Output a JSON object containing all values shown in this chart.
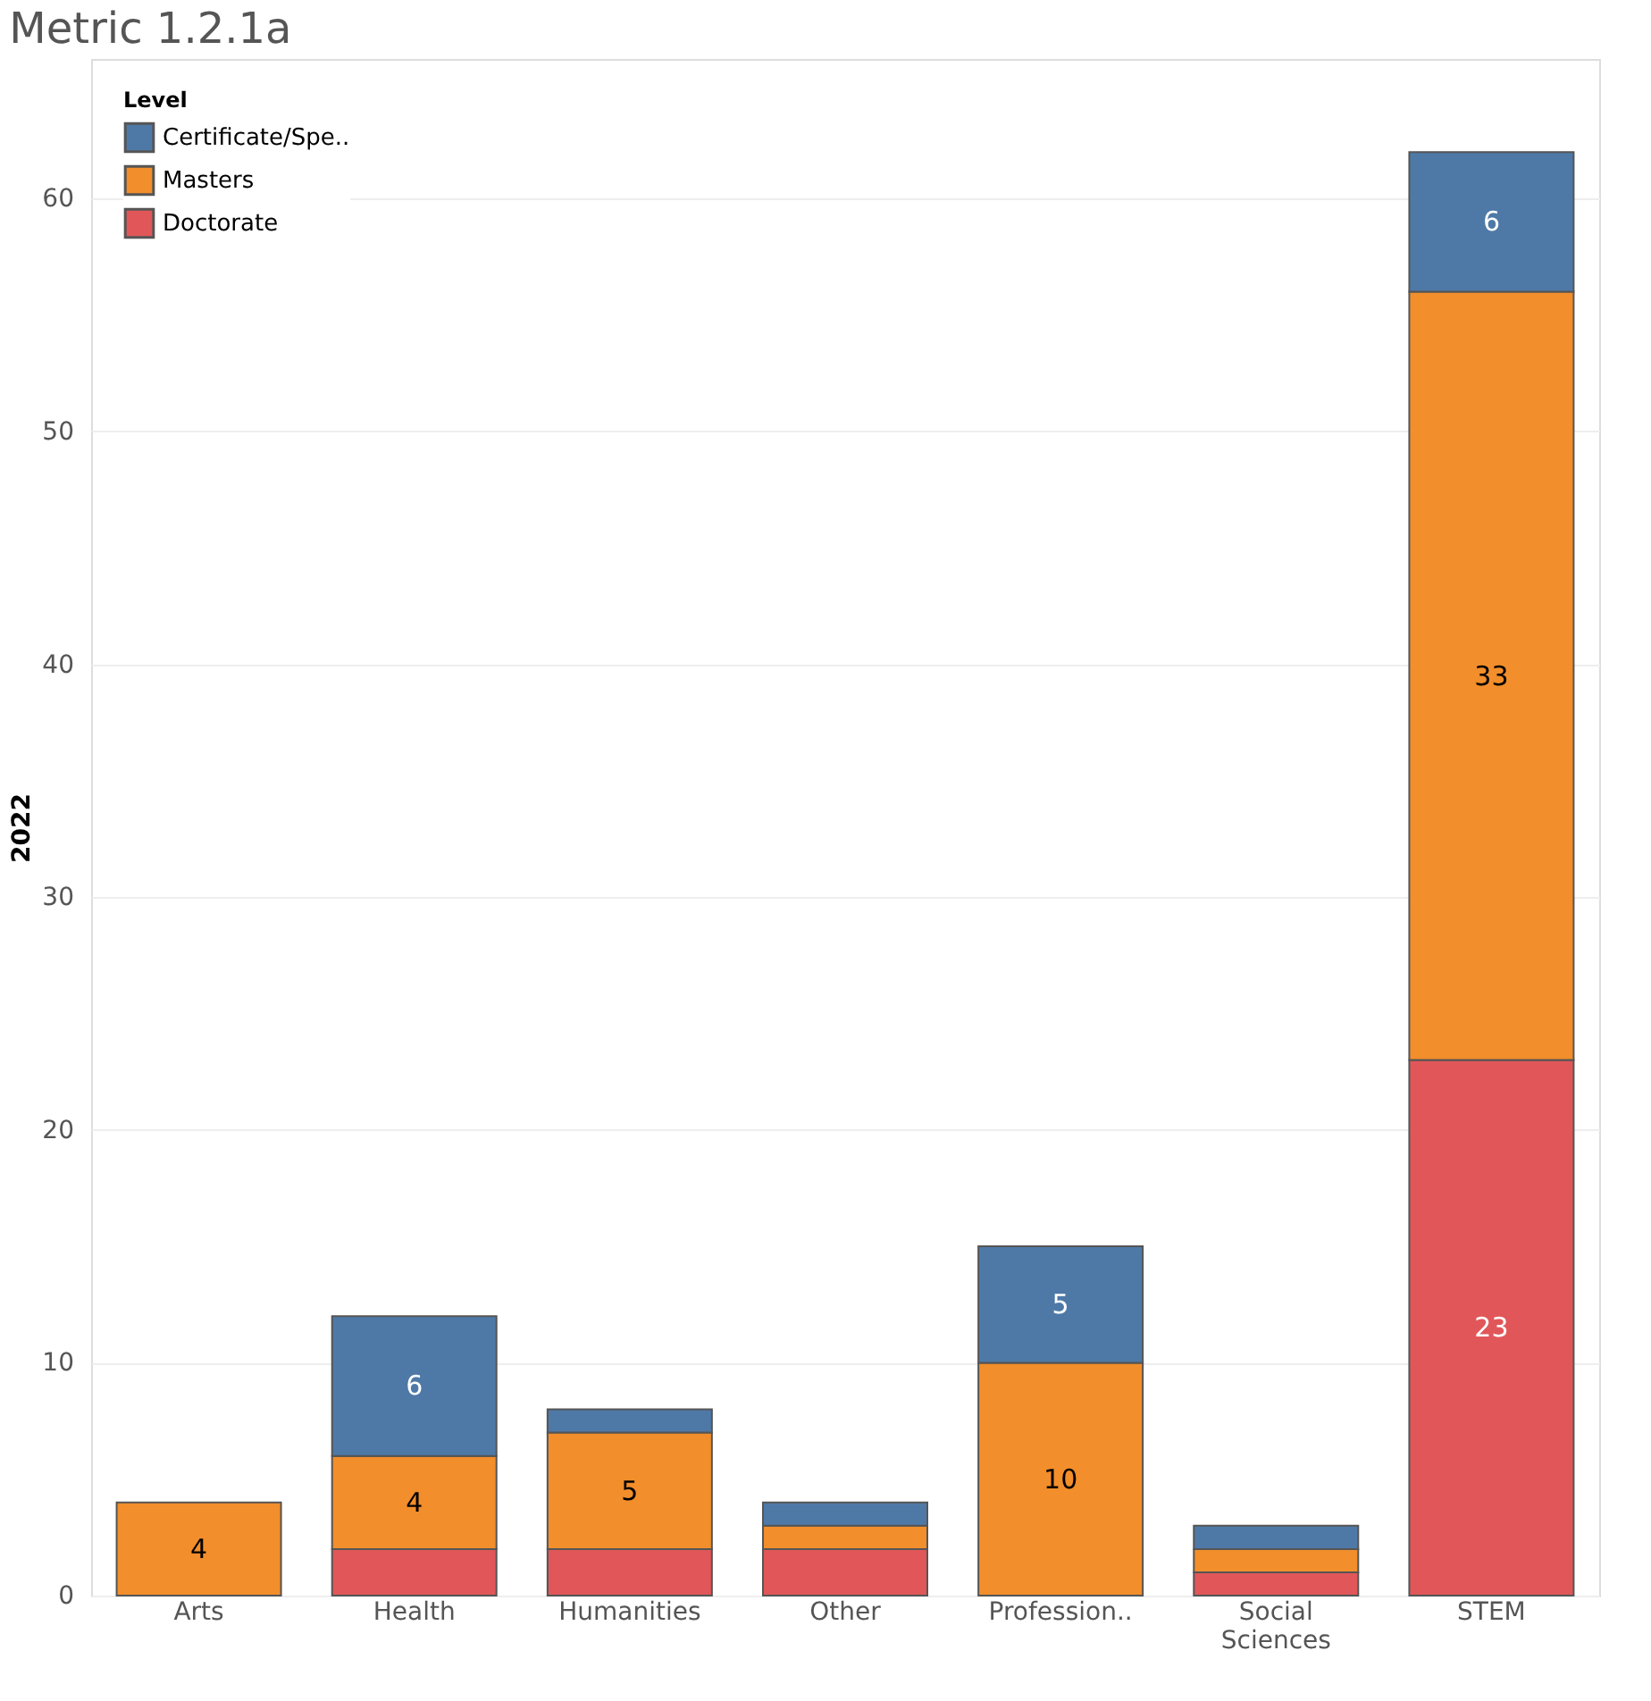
{
  "chart_data": {
    "type": "bar",
    "title": "Metric 1.2.1a",
    "ylabel": "2022",
    "legend_title": "Level",
    "categories": [
      "Arts",
      "Health",
      "Humanities",
      "Other",
      "Profession..",
      "Social Sciences",
      "STEM"
    ],
    "stacked": true,
    "series": [
      {
        "name": "Doctorate",
        "color": "#e15759",
        "values": [
          null,
          2,
          2,
          2,
          null,
          1,
          23
        ],
        "value_labels": [
          null,
          null,
          null,
          null,
          null,
          null,
          "23"
        ]
      },
      {
        "name": "Masters",
        "color": "#f28e2b",
        "values": [
          4,
          4,
          5,
          1,
          10,
          1,
          33
        ],
        "value_labels": [
          "4",
          "4",
          "5",
          null,
          "10",
          null,
          "33"
        ]
      },
      {
        "name": "Certificate/Spe..",
        "color": "#4e79a7",
        "values": [
          null,
          6,
          1,
          1,
          5,
          1,
          6
        ],
        "value_labels": [
          null,
          "6",
          null,
          null,
          "5",
          null,
          "6"
        ]
      }
    ],
    "ylim": [
      0,
      66
    ],
    "yticks": [
      0,
      10,
      20,
      30,
      40,
      50,
      60
    ],
    "grid": "y",
    "legend": "top left"
  }
}
